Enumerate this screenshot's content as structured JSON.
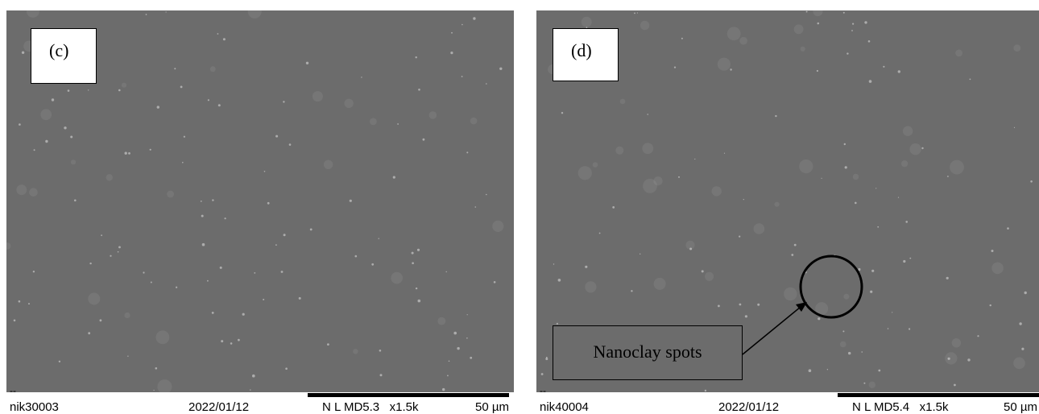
{
  "panels": [
    {
      "label": "(c)",
      "info": {
        "marker": "--",
        "id": "nik30003",
        "date": "2022/01/12",
        "params": "N L MD5.3   x1.5k",
        "scale": "50 µm"
      }
    },
    {
      "label": "(d)",
      "annotation": "Nanoclay spots",
      "info": {
        "marker": "--",
        "id": "nik40004",
        "date": "2022/01/12",
        "params": "N L MD5.4   x1.5k",
        "scale": "50 µm"
      }
    }
  ]
}
